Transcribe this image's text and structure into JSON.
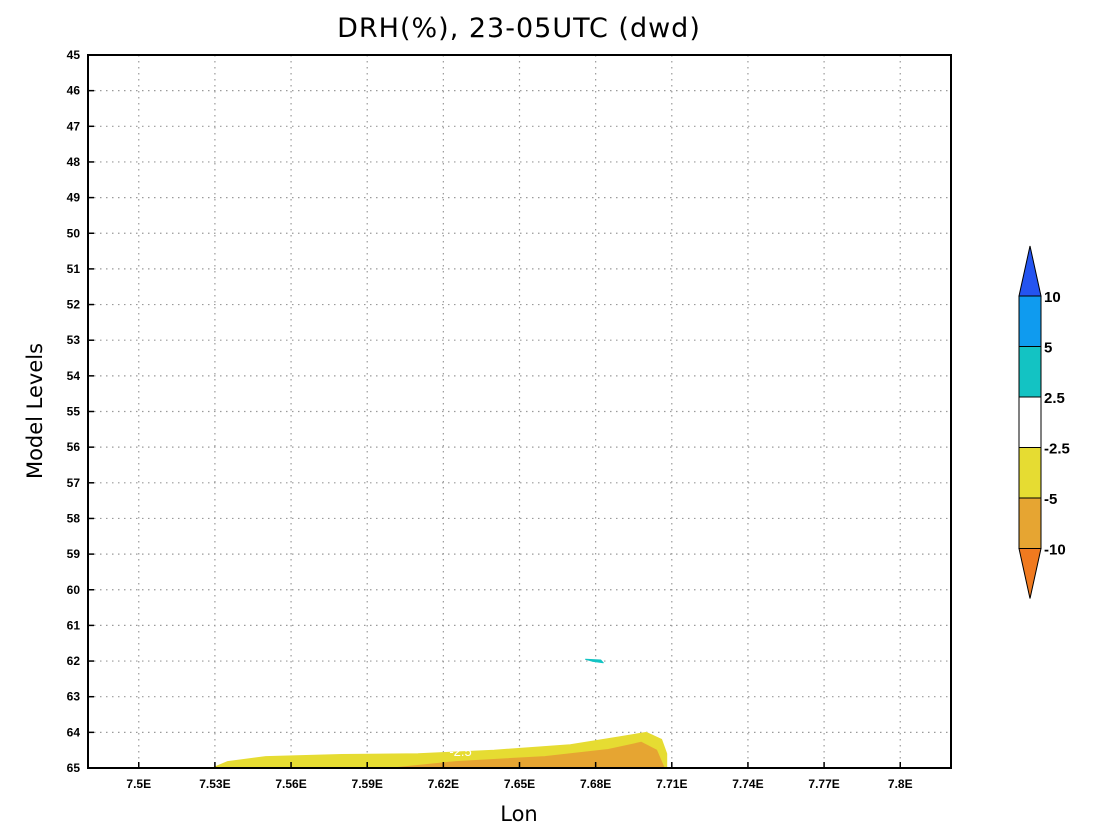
{
  "chart_data": {
    "type": "contour",
    "title": "DRH(%), 23-05UTC (dwd)",
    "xlabel": "Lon",
    "ylabel": "Model Levels",
    "xlim": [
      7.48,
      7.82
    ],
    "ylim": [
      45,
      65
    ],
    "y_inverted": true,
    "x_ticks": [
      "7.5E",
      "7.53E",
      "7.56E",
      "7.59E",
      "7.62E",
      "7.65E",
      "7.68E",
      "7.71E",
      "7.74E",
      "7.77E",
      "7.8E"
    ],
    "x_tick_values": [
      7.5,
      7.53,
      7.56,
      7.59,
      7.62,
      7.65,
      7.68,
      7.71,
      7.74,
      7.77,
      7.8
    ],
    "y_ticks": [
      45,
      46,
      47,
      48,
      49,
      50,
      51,
      52,
      53,
      54,
      55,
      56,
      57,
      58,
      59,
      60,
      61,
      62,
      63,
      64,
      65
    ],
    "grid": true,
    "contour_label": "-2.5",
    "contour_label_position": {
      "lon": 7.62,
      "level": 64.55
    },
    "colorbar": {
      "orientation": "vertical",
      "position": "right",
      "levels": [
        "10",
        "5",
        "2.5",
        "-2.5",
        "-5",
        "-10"
      ],
      "colors_top_to_bottom": [
        "#2454f0",
        "#0f9bef",
        "#13c3c3",
        "#ffffff",
        "#e6dc32",
        "#e6a532",
        "#f07a1f"
      ]
    },
    "regions": [
      {
        "name": "-5 to -2.5",
        "color": "#e6dc32",
        "outline": [
          [
            7.529,
            65
          ],
          [
            7.535,
            64.82
          ],
          [
            7.55,
            64.68
          ],
          [
            7.58,
            64.62
          ],
          [
            7.61,
            64.6
          ],
          [
            7.64,
            64.5
          ],
          [
            7.67,
            64.35
          ],
          [
            7.69,
            64.12
          ],
          [
            7.7,
            64.0
          ],
          [
            7.706,
            64.2
          ],
          [
            7.708,
            64.6
          ],
          [
            7.708,
            65
          ]
        ]
      },
      {
        "name": "-10 to -5",
        "color": "#e6a532",
        "outline": [
          [
            7.6,
            65
          ],
          [
            7.625,
            64.82
          ],
          [
            7.66,
            64.68
          ],
          [
            7.685,
            64.48
          ],
          [
            7.698,
            64.28
          ],
          [
            7.704,
            64.5
          ],
          [
            7.707,
            65
          ]
        ]
      },
      {
        "name": "2.5 to 5",
        "color": "#13c3c3",
        "outline": [
          [
            7.676,
            61.95
          ],
          [
            7.682,
            61.97
          ],
          [
            7.683,
            62.05
          ],
          [
            7.679,
            62.01
          ]
        ]
      }
    ]
  }
}
